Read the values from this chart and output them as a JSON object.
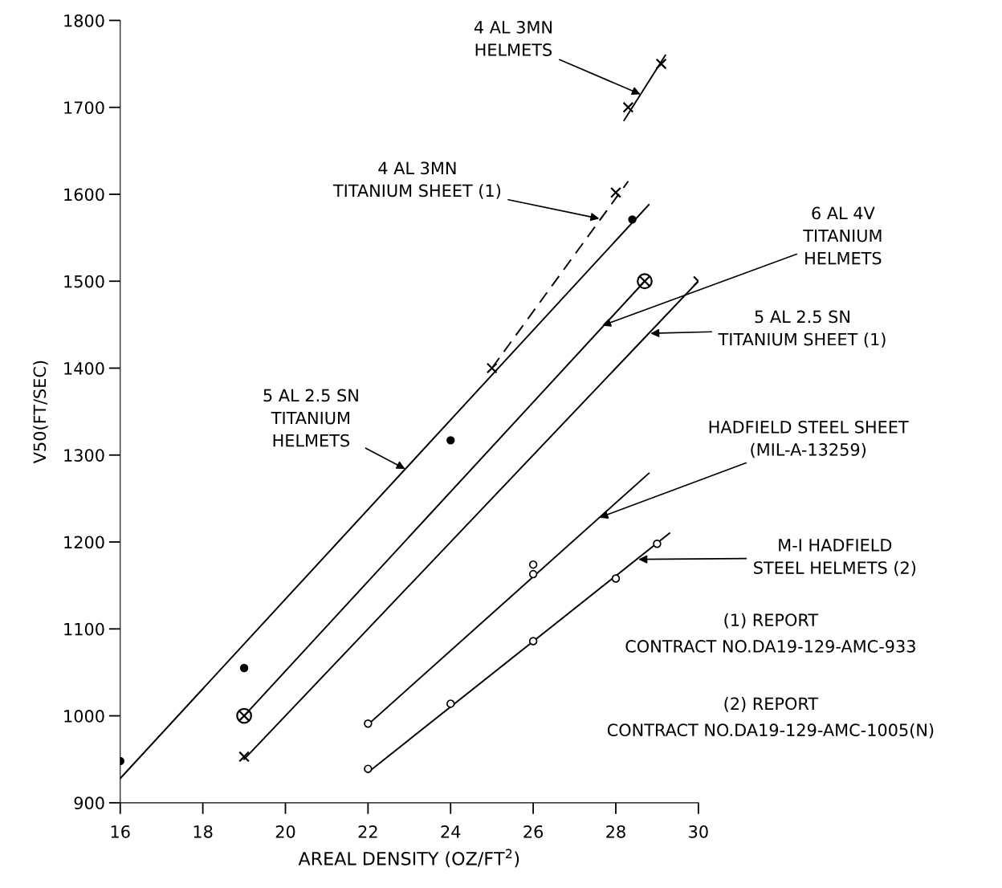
{
  "chart_data": {
    "type": "scatter",
    "xlabel": "AREAL DENSITY (OZ/FT$^{2}$)",
    "ylabel": "V50(FT/SEC)",
    "xlim": [
      16,
      30
    ],
    "xticks": [
      16,
      18,
      20,
      22,
      24,
      26,
      28,
      30
    ],
    "ylim": [
      900,
      1800
    ],
    "yticks": [
      900,
      1000,
      1100,
      1200,
      1300,
      1400,
      1500,
      1600,
      1700,
      1800
    ],
    "grid": false,
    "legend": false,
    "series": [
      {
        "marker": "circle",
        "color": "#000000",
        "x": [
          16,
          19,
          24,
          28.4
        ],
        "values": [
          948,
          1055,
          1317,
          1571
        ]
      },
      {
        "type": "line",
        "line_style": "solid",
        "color": "#000000",
        "x": [
          16,
          28.8
        ],
        "values": [
          928,
          1588
        ]
      },
      {
        "marker": "cross",
        "color": "#000000",
        "x": [
          25,
          28
        ],
        "values": [
          1400,
          1602
        ]
      },
      {
        "type": "line",
        "line_style": "dashed",
        "color": "#000000",
        "x": [
          25,
          28.3
        ],
        "values": [
          1400,
          1615
        ]
      },
      {
        "type": "line",
        "line_style": "solid",
        "marker": "circled_cross",
        "color": "#000000",
        "x": [
          19,
          28.7
        ],
        "values": [
          1000,
          1500
        ]
      },
      {
        "marker": "cross",
        "color": "#000000",
        "x": [
          19,
          30
        ],
        "values": [
          953,
          1500
        ]
      },
      {
        "type": "line",
        "line_style": "solid",
        "color": "#000000",
        "x": [
          19,
          30
        ],
        "values": [
          950,
          1500
        ]
      },
      {
        "marker": "open_circle",
        "color": "#000000",
        "x": [
          22,
          26,
          26
        ],
        "values": [
          991,
          1174,
          1163
        ]
      },
      {
        "type": "line",
        "line_style": "solid",
        "color": "#000000",
        "x": [
          22,
          28.8
        ],
        "values": [
          990,
          1279
        ]
      },
      {
        "marker": "open_circle",
        "color": "#000000",
        "x": [
          22,
          24,
          26,
          28,
          29
        ],
        "values": [
          939,
          1014,
          1086,
          1158,
          1198
        ]
      },
      {
        "type": "line",
        "line_style": "solid",
        "color": "#000000",
        "x": [
          22,
          29.3
        ],
        "values": [
          935,
          1210
        ]
      },
      {
        "marker": "cross",
        "color": "#000000",
        "x": [
          28.3,
          29.1
        ],
        "values": [
          1700,
          1750
        ]
      },
      {
        "type": "line",
        "line_style": "solid",
        "color": "#000000",
        "x": [
          28.2,
          29.2
        ],
        "values": [
          1685,
          1760
        ]
      }
    ],
    "annotations": [
      {
        "text": "4 AL 3MN\nHELMETS",
        "x": 28.6,
        "y": 1715
      },
      {
        "text": "4 AL 3MN\nTITANIUM SHEET (1)",
        "x": 27.6,
        "y": 1572
      },
      {
        "text": "6 AL 4V\nTITANIUM\nHELMETS",
        "x": 27.67,
        "y": 1449
      },
      {
        "text": "5 AL 2.5 SN\nTITANIUM SHEET (1)",
        "x": 28.84,
        "y": 1440
      },
      {
        "text": "5 AL 2.5 SN\nTITANIUM\nHELMETS",
        "x": 22.9,
        "y": 1284
      },
      {
        "text": "HADFIELD STEEL SHEET\n(MIL-A-13259)",
        "x": 27.6,
        "y": 1228
      },
      {
        "text": "M-I HADFIELD\nSTEEL HELMETS (2)",
        "x": 28.55,
        "y": 1180
      },
      "(1) REPORT\nCONTRACT NO.DA19-129-AMC-933",
      "(2) REPORT\nCONTRACT NO.DA19-129-AMC-1005(N)"
    ]
  }
}
